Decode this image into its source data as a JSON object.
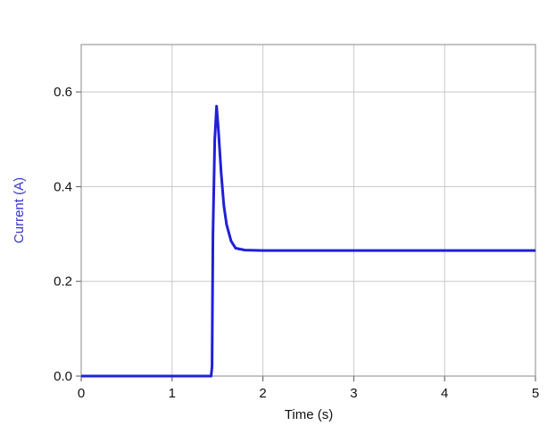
{
  "chart_data": {
    "type": "line",
    "xlabel": "Time (s)",
    "ylabel": "Current (A)",
    "x": [
      0,
      1.43,
      1.44,
      1.45,
      1.47,
      1.49,
      1.51,
      1.54,
      1.57,
      1.6,
      1.65,
      1.7,
      1.8,
      2,
      3,
      4,
      5
    ],
    "series": [
      {
        "color": "#2020d8",
        "values": [
          0,
          0,
          0.02,
          0.3,
          0.5,
          0.57,
          0.52,
          0.43,
          0.36,
          0.32,
          0.285,
          0.27,
          0.266,
          0.265,
          0.265,
          0.265,
          0.265
        ]
      }
    ],
    "xlim": [
      0,
      5
    ],
    "xticks": [
      0,
      1,
      2,
      3,
      4,
      5
    ],
    "ylim": [
      0,
      0.7
    ],
    "yticks": [
      {
        "value": 0,
        "label": "0.0"
      },
      0.2,
      0.4,
      0.6
    ],
    "grid": true,
    "ylabel_color": "#3535cc"
  }
}
